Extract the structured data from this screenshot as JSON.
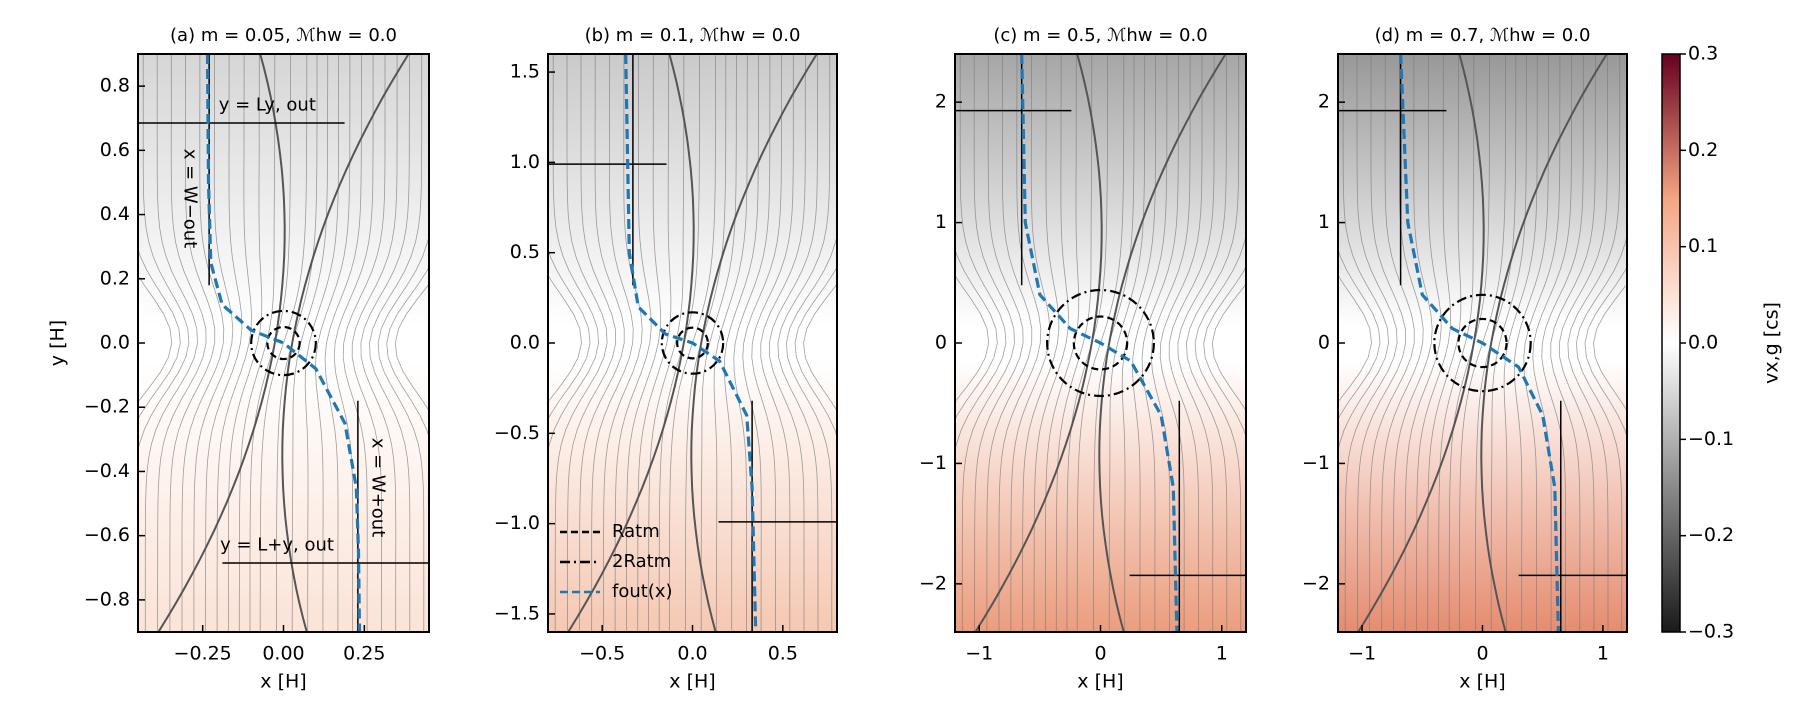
{
  "chart_data": [
    {
      "type": "streamplot",
      "title": "(a) m = 0.05,  ℳhw = 0.0",
      "xlabel": "x [H]",
      "ylabel": "y [H]",
      "xlim": [
        -0.45,
        0.45
      ],
      "ylim": [
        -0.9,
        0.9
      ],
      "xticks": [
        {
          "value": -0.25,
          "label": "−0.25"
        },
        {
          "value": 0,
          "label": "0.00"
        },
        0.25
      ],
      "yticks": [
        {
          "value": -0.8,
          "label": "−0.8"
        },
        {
          "value": -0.6,
          "label": "−0.6"
        },
        {
          "value": -0.4,
          "label": "−0.4"
        },
        {
          "value": -0.2,
          "label": "−0.2"
        },
        {
          "value": 0,
          "label": "0.0"
        },
        0.2,
        0.4,
        0.6,
        0.8
      ],
      "field_colors": [
        "#d6d6d6",
        "#ffffff",
        "#fbe3d7"
      ],
      "R_atm": 0.05,
      "Ly_out": 0.685,
      "Ly_in": -0.685,
      "W_minus": -0.23,
      "W_plus": 0.23,
      "f_out": {
        "color": "#1f77b4",
        "x": [
          -0.235,
          -0.232,
          -0.225,
          -0.19,
          -0.1,
          0,
          0.1,
          0.19,
          0.225,
          0.232,
          0.235
        ],
        "y": [
          0.9,
          0.5,
          0.25,
          0.12,
          0.04,
          0,
          -0.08,
          -0.25,
          -0.45,
          -0.65,
          -0.9
        ]
      },
      "annotations": [
        "y = Ly, out",
        "x = W−out",
        "x = W+out",
        "y = L+y, out"
      ]
    },
    {
      "type": "streamplot",
      "title": "(b) m = 0.1,  ℳhw = 0.0",
      "xlabel": "x [H]",
      "xlim": [
        -0.8,
        0.8
      ],
      "ylim": [
        -1.6,
        1.6
      ],
      "xticks": [
        {
          "value": -0.5,
          "label": "−0.5"
        },
        {
          "value": 0,
          "label": "0.0"
        },
        0.5
      ],
      "yticks": [
        {
          "value": -1.5,
          "label": "−1.5"
        },
        {
          "value": -1.0,
          "label": "−1.0"
        },
        {
          "value": -0.5,
          "label": "−0.5"
        },
        {
          "value": 0,
          "label": "0.0"
        },
        0.5,
        {
          "value": 1.0,
          "label": "1.0"
        },
        1.5
      ],
      "field_colors": [
        "#cacaca",
        "#ffffff",
        "#f5c8b2"
      ],
      "R_atm": 0.085,
      "Ly_out": 0.99,
      "Ly_in": -0.99,
      "W_minus": -0.33,
      "W_plus": 0.33,
      "f_out": {
        "color": "#1f77b4",
        "x": [
          -0.37,
          -0.35,
          -0.3,
          -0.15,
          0,
          0.15,
          0.3,
          0.33,
          0.35
        ],
        "y": [
          1.6,
          0.5,
          0.2,
          0.05,
          0,
          -0.1,
          -0.4,
          -0.8,
          -1.6
        ]
      },
      "legend": [
        {
          "label": "Ratm",
          "dash": "dashed"
        },
        {
          "label": "2Ratm",
          "dash": "dashdot"
        },
        {
          "label": "fout(x)",
          "dash": "blue"
        }
      ]
    },
    {
      "type": "streamplot",
      "title": "(c) m = 0.5,  ℳhw = 0.0",
      "xlabel": "x [H]",
      "xlim": [
        -1.2,
        1.2
      ],
      "ylim": [
        -2.4,
        2.4
      ],
      "xticks": [
        {
          "value": -1,
          "label": "−1"
        },
        0,
        1
      ],
      "yticks": [
        {
          "value": -2,
          "label": "−2"
        },
        {
          "value": -1,
          "label": "−1"
        },
        0,
        1,
        2
      ],
      "field_colors": [
        "#a6a6a6",
        "#ffffff",
        "#eb9d7e"
      ],
      "R_atm": 0.22,
      "Ly_out": 1.93,
      "Ly_in": -1.93,
      "W_minus": -0.65,
      "W_plus": 0.65,
      "f_out": {
        "color": "#1f77b4",
        "x": [
          -0.65,
          -0.62,
          -0.5,
          -0.25,
          0,
          0.25,
          0.5,
          0.6,
          0.63
        ],
        "y": [
          2.4,
          1.0,
          0.4,
          0.12,
          0,
          -0.15,
          -0.6,
          -1.2,
          -2.4
        ]
      }
    },
    {
      "type": "streamplot",
      "title": "(d) m = 0.7,  ℳhw = 0.0",
      "xlabel": "x [H]",
      "xlim": [
        -1.2,
        1.2
      ],
      "ylim": [
        -2.4,
        2.4
      ],
      "xticks": [
        {
          "value": -1,
          "label": "−1"
        },
        0,
        1
      ],
      "yticks": [
        {
          "value": -2,
          "label": "−2"
        },
        {
          "value": -1,
          "label": "−1"
        },
        0,
        1,
        2
      ],
      "field_colors": [
        "#989898",
        "#ffffff",
        "#e58c70"
      ],
      "R_atm": 0.2,
      "Ly_out": 1.93,
      "Ly_in": -1.93,
      "W_minus": -0.68,
      "W_plus": 0.65,
      "f_out": {
        "color": "#1f77b4",
        "x": [
          -0.68,
          -0.62,
          -0.5,
          -0.25,
          0,
          0.3,
          0.5,
          0.6,
          0.63
        ],
        "y": [
          2.4,
          1.0,
          0.4,
          0.12,
          0,
          -0.2,
          -0.6,
          -1.2,
          -2.4
        ]
      }
    },
    {
      "type": "colorbar",
      "label": "vx,g [cs]",
      "ylim": [
        -0.3,
        0.3
      ],
      "yticks": [
        {
          "value": -0.3,
          "label": "−0.3"
        },
        {
          "value": -0.2,
          "label": "−0.2"
        },
        {
          "value": -0.1,
          "label": "−0.1"
        },
        {
          "value": 0,
          "label": "0.0"
        },
        0.1,
        0.2,
        0.3
      ],
      "colors": [
        "#1a1a1a",
        "#8a8a8a",
        "#ffffff",
        "#f4a582",
        "#67001f"
      ]
    }
  ]
}
